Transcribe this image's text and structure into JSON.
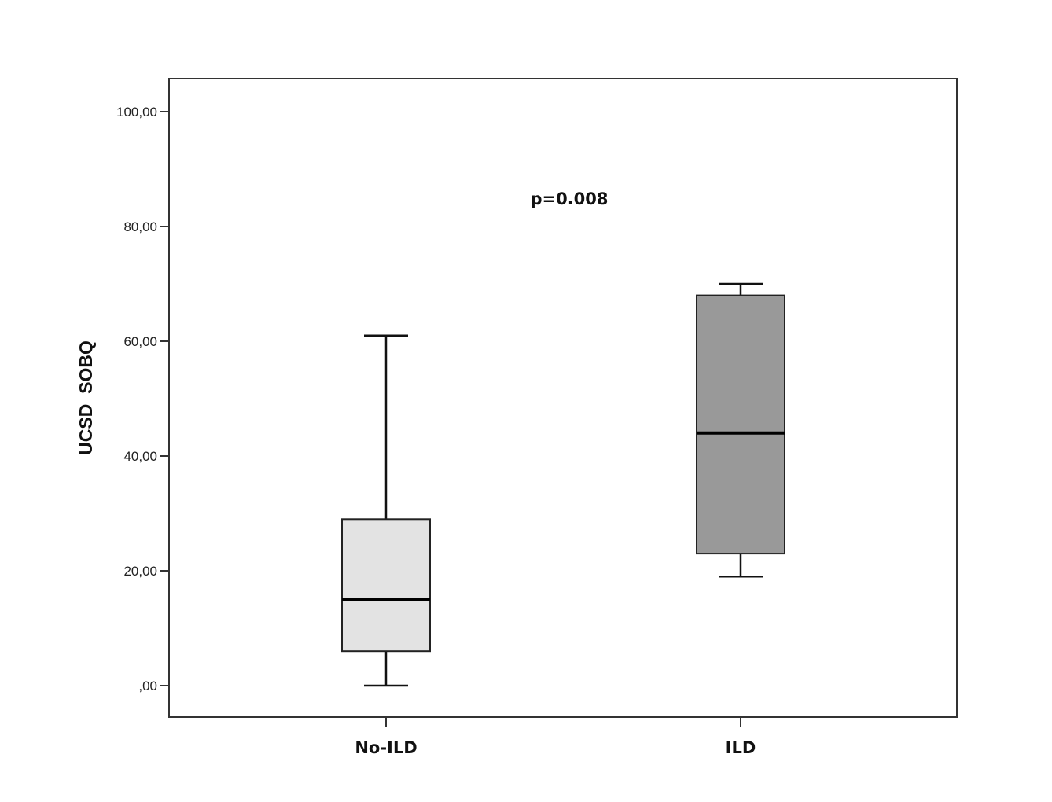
{
  "chart_data": {
    "type": "boxplot",
    "title": "",
    "xlabel": "",
    "ylabel": "UCSD_SOBQ",
    "ylim": [
      -5.5,
      105.5
    ],
    "yticks": [
      0,
      20,
      40,
      60,
      80,
      100
    ],
    "ytick_labels": [
      ",00",
      "20,00",
      "40,00",
      "60,00",
      "80,00",
      "100,00"
    ],
    "categories": [
      "No-ILD",
      "ILD"
    ],
    "boxes": [
      {
        "category": "No-ILD",
        "min": 0,
        "q1": 6,
        "median": 15,
        "q3": 29,
        "max": 61,
        "color": "#e3e3e3"
      },
      {
        "category": "ILD",
        "min": 19,
        "q1": 23,
        "median": 44,
        "q3": 68,
        "max": 70,
        "color": "#999999"
      }
    ],
    "annotation": "p=0.008",
    "grid": false
  }
}
